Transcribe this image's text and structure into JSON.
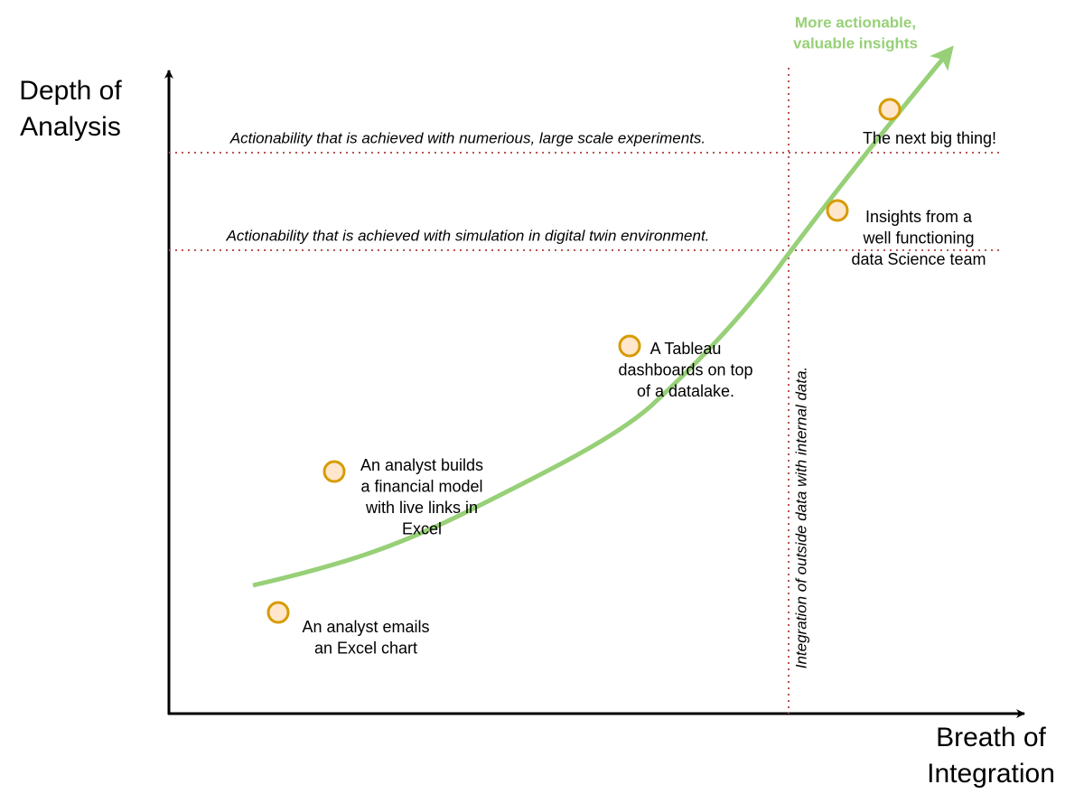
{
  "axes": {
    "y_label": [
      "Depth of",
      "Analysis"
    ],
    "x_label": [
      "Breath of",
      "Integration"
    ]
  },
  "thresholds": {
    "horizontal": [
      "Actionability that is achieved with numerious, large scale experiments.",
      "Actionability that is achieved with simulation in digital twin environment."
    ],
    "vertical": "Integration of outside data with internal data."
  },
  "curve_label": [
    "More actionable,",
    "valuable insights"
  ],
  "nodes": [
    {
      "label": [
        "An analyst emails",
        "an Excel chart"
      ]
    },
    {
      "label": [
        "An analyst builds",
        "a financial model",
        "with live links in",
        "Excel"
      ]
    },
    {
      "label": [
        "A Tableau",
        "dashboards on top",
        "of a datalake."
      ]
    },
    {
      "label": [
        "Insights from a",
        "well functioning",
        "data Science team"
      ]
    },
    {
      "label": [
        "The next big thing!"
      ]
    }
  ]
}
